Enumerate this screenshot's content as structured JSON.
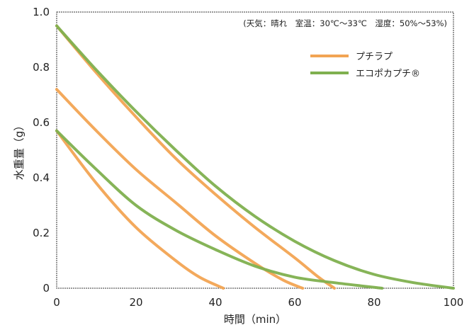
{
  "chart_data": {
    "type": "line",
    "xlabel": "時間（min）",
    "ylabel": "水重量（g）",
    "annotation": "(天気：晴れ　室温：30℃～33℃　湿度：50%～53%)",
    "xlim": [
      0,
      100
    ],
    "ylim": [
      0,
      1.0
    ],
    "x_ticks": [
      "0",
      "20",
      "40",
      "60",
      "80",
      "100"
    ],
    "y_ticks": [
      "0",
      "0.2",
      "0.4",
      "0.6",
      "0.8",
      "1.0"
    ],
    "legend_position": "top-right",
    "legend": [
      {
        "name": "プチラプ",
        "color": "#f2a453"
      },
      {
        "name": "エコポカプチ®",
        "color": "#7fb04f"
      }
    ],
    "series": [
      {
        "name": "プチラプ",
        "color": "#f2a453",
        "points": [
          [
            0,
            0.95
          ],
          [
            10,
            0.78
          ],
          [
            20,
            0.62
          ],
          [
            30,
            0.47
          ],
          [
            40,
            0.34
          ],
          [
            50,
            0.22
          ],
          [
            60,
            0.11
          ],
          [
            66,
            0.04
          ],
          [
            70,
            0.0
          ]
        ]
      },
      {
        "name": "プチラプ",
        "color": "#f2a453",
        "points": [
          [
            0,
            0.72
          ],
          [
            10,
            0.57
          ],
          [
            20,
            0.43
          ],
          [
            30,
            0.31
          ],
          [
            40,
            0.19
          ],
          [
            50,
            0.09
          ],
          [
            57,
            0.03
          ],
          [
            62,
            0.0
          ]
        ]
      },
      {
        "name": "プチラプ",
        "color": "#f2a453",
        "points": [
          [
            0,
            0.57
          ],
          [
            10,
            0.38
          ],
          [
            20,
            0.22
          ],
          [
            30,
            0.1
          ],
          [
            36,
            0.04
          ],
          [
            42,
            0.0
          ]
        ]
      },
      {
        "name": "エコポカプチ®",
        "color": "#7fb04f",
        "points": [
          [
            0,
            0.95
          ],
          [
            10,
            0.79
          ],
          [
            20,
            0.64
          ],
          [
            30,
            0.5
          ],
          [
            40,
            0.37
          ],
          [
            50,
            0.26
          ],
          [
            60,
            0.17
          ],
          [
            70,
            0.1
          ],
          [
            80,
            0.05
          ],
          [
            90,
            0.02
          ],
          [
            100,
            0.0
          ]
        ]
      },
      {
        "name": "エコポカプチ®",
        "color": "#7fb04f",
        "points": [
          [
            0,
            0.57
          ],
          [
            10,
            0.43
          ],
          [
            20,
            0.3
          ],
          [
            30,
            0.21
          ],
          [
            40,
            0.14
          ],
          [
            50,
            0.08
          ],
          [
            60,
            0.04
          ],
          [
            70,
            0.02
          ],
          [
            82,
            0.0
          ]
        ]
      }
    ]
  }
}
